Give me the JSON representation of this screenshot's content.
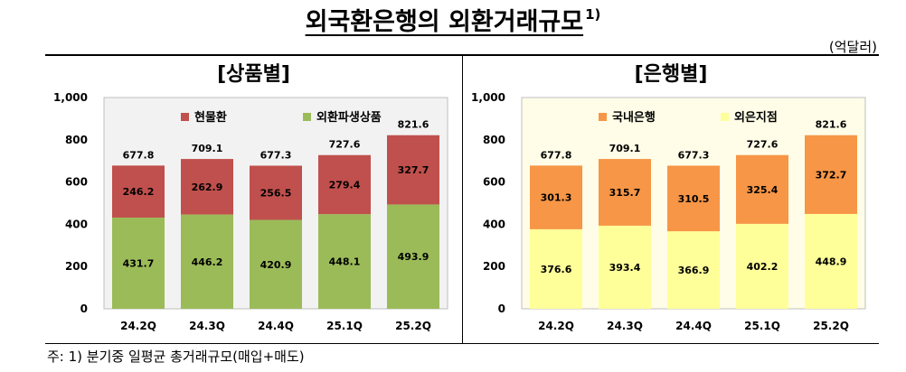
{
  "title": "외국환은행의 외환거래규모",
  "title_note_marker": "1)",
  "unit": "(억달러)",
  "footnote": "주: 1) 분기중 일평균 총거래규모(매입+매도)",
  "chart_data": [
    {
      "type": "bar",
      "stacked": true,
      "panel_title": "[상품별]",
      "categories": [
        "24.2Q",
        "24.3Q",
        "24.4Q",
        "25.1Q",
        "25.2Q"
      ],
      "series": [
        {
          "name": "외환파생상품",
          "values": [
            431.7,
            446.2,
            420.9,
            448.1,
            493.9
          ],
          "color": "#9bbb59"
        },
        {
          "name": "현물환",
          "values": [
            246.2,
            262.9,
            256.5,
            279.4,
            327.7
          ],
          "color": "#c0504d"
        }
      ],
      "totals": [
        677.8,
        709.1,
        677.3,
        727.6,
        821.6
      ],
      "ylim": [
        0,
        1000
      ],
      "yticks": [
        "0",
        "200",
        "400",
        "600",
        "800",
        "1,000"
      ],
      "legend_order": [
        "현물환",
        "외환파생상품"
      ],
      "legend_position": "top",
      "plot_background": "#f2f2f2",
      "xlabel": "",
      "ylabel": ""
    },
    {
      "type": "bar",
      "stacked": true,
      "panel_title": "[은행별]",
      "categories": [
        "24.2Q",
        "24.3Q",
        "24.4Q",
        "25.1Q",
        "25.2Q"
      ],
      "series": [
        {
          "name": "외은지점",
          "values": [
            376.6,
            393.4,
            366.9,
            402.2,
            448.9
          ],
          "color": "#ffff99"
        },
        {
          "name": "국내은행",
          "values": [
            301.3,
            315.7,
            310.5,
            325.4,
            372.7
          ],
          "color": "#f79646"
        }
      ],
      "totals": [
        677.8,
        709.1,
        677.3,
        727.6,
        821.6
      ],
      "ylim": [
        0,
        1000
      ],
      "yticks": [
        "0",
        "200",
        "400",
        "600",
        "800",
        "1,000"
      ],
      "legend_order": [
        "국내은행",
        "외은지점"
      ],
      "legend_position": "top",
      "plot_background": "#fffde7",
      "xlabel": "",
      "ylabel": ""
    }
  ]
}
